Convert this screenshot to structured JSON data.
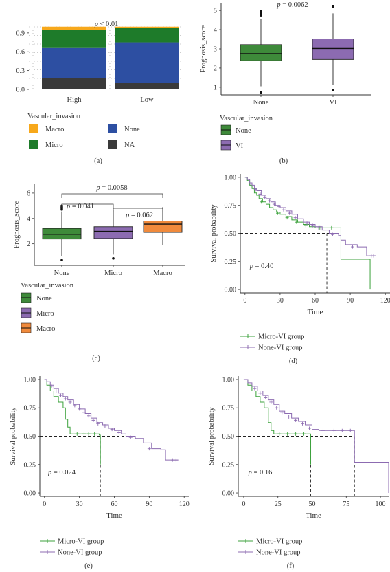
{
  "chart_data": [
    {
      "id": "a",
      "type": "bar",
      "stacked": true,
      "panel_label": "(a)",
      "p_label": "p < 0.01",
      "ylabel": "",
      "xlabel": "",
      "categories": [
        "High",
        "Low"
      ],
      "yticks": [
        "0.0",
        "0.3",
        "0.6",
        "0.9"
      ],
      "ylim": [
        0,
        1.03
      ],
      "grid": "dotted",
      "series": [
        {
          "name": "NA",
          "color": "#3a3a3a",
          "values": [
            0.18,
            0.1
          ]
        },
        {
          "name": "None",
          "color": "#2d4fa2",
          "values": [
            0.48,
            0.65
          ]
        },
        {
          "name": "Micro",
          "color": "#1e7b2a",
          "values": [
            0.29,
            0.23
          ]
        },
        {
          "name": "Macro",
          "color": "#f7a81b",
          "values": [
            0.05,
            0.02
          ]
        }
      ],
      "legend": {
        "title": "Vascular_invasion",
        "items": [
          {
            "name": "Macro",
            "color": "#f7a81b"
          },
          {
            "name": "None",
            "color": "#2d4fa2"
          },
          {
            "name": "Micro",
            "color": "#1e7b2a"
          },
          {
            "name": "NA",
            "color": "#3a3a3a"
          }
        ]
      }
    },
    {
      "id": "b",
      "type": "box",
      "panel_label": "(b)",
      "p_label": "p = 0.0062",
      "ylabel": "Prognosis_score",
      "categories": [
        "None",
        "VI"
      ],
      "yticks": [
        1,
        2,
        3,
        4,
        5
      ],
      "ylim": [
        0.6,
        5.4
      ],
      "boxes": [
        {
          "name": "None",
          "color": "#3e8a3a",
          "q1": 2.38,
          "median": 2.75,
          "q3": 3.22,
          "whisker_low": 1.05,
          "whisker_high": 4.55,
          "outliers": [
            0.72,
            4.75,
            4.8,
            4.85,
            4.9,
            4.95
          ]
        },
        {
          "name": "VI",
          "color": "#8c6bb1",
          "q1": 2.45,
          "median": 3.02,
          "q3": 3.52,
          "whisker_low": 1.1,
          "whisker_high": 4.85,
          "outliers": [
            0.85,
            5.2
          ]
        }
      ],
      "legend": {
        "title": "Vascular_invasion",
        "items": [
          {
            "name": "None",
            "color": "#3e8a3a"
          },
          {
            "name": "VI",
            "color": "#8c6bb1"
          }
        ]
      }
    },
    {
      "id": "c",
      "type": "box",
      "panel_label": "(c)",
      "ylabel": "Prognosis_score",
      "categories": [
        "None",
        "Micro",
        "Macro"
      ],
      "yticks": [
        2,
        4,
        6
      ],
      "ylim": [
        0.3,
        6.7
      ],
      "boxes": [
        {
          "name": "None",
          "color": "#3e8a3a",
          "q1": 2.38,
          "median": 2.75,
          "q3": 3.22,
          "whisker_low": 1.05,
          "whisker_high": 4.55,
          "outliers": [
            0.72,
            4.7,
            4.8,
            4.9,
            5.0
          ]
        },
        {
          "name": "Micro",
          "color": "#8c6bb1",
          "q1": 2.42,
          "median": 2.98,
          "q3": 3.35,
          "whisker_low": 1.15,
          "whisker_high": 4.65,
          "outliers": [
            0.85
          ]
        },
        {
          "name": "Macro",
          "color": "#f08a3c",
          "q1": 2.9,
          "median": 3.55,
          "q3": 3.8,
          "whisker_low": 1.9,
          "whisker_high": 4.9,
          "outliers": []
        }
      ],
      "comparisons": [
        {
          "from": 0,
          "to": 1,
          "label": "p = 0.041"
        },
        {
          "from": 1,
          "to": 2,
          "label": "p = 0.062"
        },
        {
          "from": 0,
          "to": 2,
          "label": "p = 0.0058"
        }
      ],
      "legend": {
        "title": "Vascular_invasion",
        "items": [
          {
            "name": "None",
            "color": "#3e8a3a"
          },
          {
            "name": "Micro",
            "color": "#8c6bb1"
          },
          {
            "name": "Macro",
            "color": "#f08a3c"
          }
        ]
      }
    },
    {
      "id": "d",
      "type": "line",
      "panel_label": "(d)",
      "p_label": "p = 0.40",
      "xlabel": "Time",
      "ylabel": "Survival probability",
      "xlim": [
        -4,
        124
      ],
      "xticks": [
        0,
        30,
        60,
        90,
        120
      ],
      "ylim": [
        -0.03,
        1.03
      ],
      "yticks": [
        "0.00",
        "0.25",
        "0.50",
        "0.75",
        "1.00"
      ],
      "median_lines": [
        70,
        82
      ],
      "series": [
        {
          "name": "Micro-VI group",
          "color": "#3ca23c",
          "points": [
            [
              0,
              1.0
            ],
            [
              2,
              0.97
            ],
            [
              4,
              0.93
            ],
            [
              6,
              0.9
            ],
            [
              8,
              0.86
            ],
            [
              10,
              0.84
            ],
            [
              12,
              0.81
            ],
            [
              15,
              0.78
            ],
            [
              18,
              0.76
            ],
            [
              21,
              0.73
            ],
            [
              24,
              0.71
            ],
            [
              27,
              0.69
            ],
            [
              30,
              0.67
            ],
            [
              35,
              0.65
            ],
            [
              40,
              0.62
            ],
            [
              45,
              0.6
            ],
            [
              50,
              0.58
            ],
            [
              55,
              0.56
            ],
            [
              60,
              0.55
            ],
            [
              70,
              0.55
            ],
            [
              76,
              0.55
            ],
            [
              82,
              0.55
            ],
            [
              82,
              0.27
            ],
            [
              107,
              0.27
            ],
            [
              107,
              0.0
            ]
          ],
          "censors": [
            [
              14,
              0.78
            ],
            [
              28,
              0.68
            ],
            [
              36,
              0.64
            ],
            [
              44,
              0.6
            ],
            [
              52,
              0.57
            ],
            [
              64,
              0.55
            ],
            [
              74,
              0.55
            ]
          ]
        },
        {
          "name": "None-VI group",
          "color": "#8c6bb1",
          "points": [
            [
              0,
              1.0
            ],
            [
              2,
              0.98
            ],
            [
              4,
              0.95
            ],
            [
              6,
              0.93
            ],
            [
              8,
              0.9
            ],
            [
              10,
              0.88
            ],
            [
              14,
              0.84
            ],
            [
              18,
              0.81
            ],
            [
              22,
              0.78
            ],
            [
              26,
              0.75
            ],
            [
              30,
              0.73
            ],
            [
              35,
              0.7
            ],
            [
              40,
              0.67
            ],
            [
              45,
              0.63
            ],
            [
              50,
              0.6
            ],
            [
              55,
              0.58
            ],
            [
              60,
              0.56
            ],
            [
              66,
              0.53
            ],
            [
              72,
              0.5
            ],
            [
              80,
              0.48
            ],
            [
              82,
              0.44
            ],
            [
              86,
              0.4
            ],
            [
              96,
              0.38
            ],
            [
              104,
              0.3
            ],
            [
              112,
              0.3
            ]
          ],
          "censors": [
            [
              5,
              0.94
            ],
            [
              9,
              0.89
            ],
            [
              13,
              0.85
            ],
            [
              17,
              0.82
            ],
            [
              21,
              0.79
            ],
            [
              25,
              0.76
            ],
            [
              29,
              0.74
            ],
            [
              33,
              0.71
            ],
            [
              38,
              0.68
            ],
            [
              43,
              0.64
            ],
            [
              48,
              0.61
            ],
            [
              53,
              0.59
            ],
            [
              58,
              0.57
            ],
            [
              63,
              0.55
            ],
            [
              75,
              0.49
            ],
            [
              92,
              0.38
            ],
            [
              108,
              0.3
            ],
            [
              110,
              0.3
            ]
          ]
        }
      ],
      "legend": [
        {
          "name": "Micro-VI group",
          "color": "#3ca23c"
        },
        {
          "name": "None-VI group",
          "color": "#8c6bb1"
        }
      ]
    },
    {
      "id": "e",
      "type": "line",
      "panel_label": "(e)",
      "p_label": "p = 0.024",
      "xlabel": "Time",
      "ylabel": "Survival probability",
      "xlim": [
        -4,
        124
      ],
      "xticks": [
        0,
        30,
        60,
        90,
        120
      ],
      "ylim": [
        -0.03,
        1.03
      ],
      "yticks": [
        "0.00",
        "0.25",
        "0.50",
        "0.75",
        "1.00"
      ],
      "median_lines": [
        48,
        70
      ],
      "series": [
        {
          "name": "Micro-VI group",
          "color": "#3ca23c",
          "points": [
            [
              0,
              1.0
            ],
            [
              2,
              0.95
            ],
            [
              5,
              0.9
            ],
            [
              8,
              0.85
            ],
            [
              12,
              0.8
            ],
            [
              16,
              0.75
            ],
            [
              18,
              0.65
            ],
            [
              20,
              0.58
            ],
            [
              22,
              0.52
            ],
            [
              30,
              0.52
            ],
            [
              40,
              0.52
            ],
            [
              47,
              0.51
            ],
            [
              48,
              0.5
            ],
            [
              48,
              0.25
            ]
          ],
          "censors": [
            [
              28,
              0.52
            ],
            [
              34,
              0.52
            ],
            [
              38,
              0.52
            ],
            [
              43,
              0.52
            ]
          ]
        },
        {
          "name": "None-VI group",
          "color": "#8c6bb1",
          "points": [
            [
              0,
              1.0
            ],
            [
              2,
              0.98
            ],
            [
              5,
              0.95
            ],
            [
              8,
              0.92
            ],
            [
              12,
              0.88
            ],
            [
              16,
              0.85
            ],
            [
              20,
              0.82
            ],
            [
              25,
              0.78
            ],
            [
              30,
              0.74
            ],
            [
              35,
              0.7
            ],
            [
              40,
              0.66
            ],
            [
              45,
              0.62
            ],
            [
              50,
              0.6
            ],
            [
              55,
              0.57
            ],
            [
              60,
              0.55
            ],
            [
              66,
              0.52
            ],
            [
              70,
              0.5
            ],
            [
              78,
              0.48
            ],
            [
              85,
              0.44
            ],
            [
              92,
              0.39
            ],
            [
              100,
              0.38
            ],
            [
              104,
              0.29
            ],
            [
              115,
              0.29
            ]
          ],
          "censors": [
            [
              6,
              0.94
            ],
            [
              10,
              0.9
            ],
            [
              14,
              0.86
            ],
            [
              18,
              0.83
            ],
            [
              22,
              0.8
            ],
            [
              26,
              0.77
            ],
            [
              30,
              0.74
            ],
            [
              34,
              0.71
            ],
            [
              38,
              0.68
            ],
            [
              42,
              0.64
            ],
            [
              46,
              0.61
            ],
            [
              52,
              0.59
            ],
            [
              58,
              0.56
            ],
            [
              64,
              0.53
            ],
            [
              74,
              0.49
            ],
            [
              90,
              0.39
            ],
            [
              110,
              0.29
            ],
            [
              113,
              0.29
            ]
          ]
        }
      ],
      "legend": [
        {
          "name": "Micro-VI group",
          "color": "#3ca23c"
        },
        {
          "name": "None-VI group",
          "color": "#8c6bb1"
        }
      ]
    },
    {
      "id": "f",
      "type": "line",
      "panel_label": "(f)",
      "p_label": "p = 0.16",
      "xlabel": "Time",
      "ylabel": "Survival probability",
      "xlim": [
        -4,
        106
      ],
      "xticks": [
        0,
        25,
        50,
        75,
        100
      ],
      "ylim": [
        -0.03,
        1.03
      ],
      "yticks": [
        "0.00",
        "0.25",
        "0.50",
        "0.75",
        "1.00"
      ],
      "median_lines": [
        49,
        81
      ],
      "series": [
        {
          "name": "Micro-VI group",
          "color": "#3ca23c",
          "points": [
            [
              0,
              1.0
            ],
            [
              3,
              0.95
            ],
            [
              6,
              0.9
            ],
            [
              9,
              0.85
            ],
            [
              12,
              0.8
            ],
            [
              15,
              0.75
            ],
            [
              18,
              0.62
            ],
            [
              20,
              0.55
            ],
            [
              22,
              0.52
            ],
            [
              30,
              0.52
            ],
            [
              40,
              0.52
            ],
            [
              49,
              0.51
            ],
            [
              49,
              0.25
            ]
          ],
          "censors": [
            [
              26,
              0.52
            ],
            [
              32,
              0.52
            ],
            [
              38,
              0.52
            ],
            [
              44,
              0.52
            ]
          ]
        },
        {
          "name": "None-VI group",
          "color": "#8c6bb1",
          "points": [
            [
              0,
              1.0
            ],
            [
              3,
              0.97
            ],
            [
              6,
              0.94
            ],
            [
              10,
              0.9
            ],
            [
              14,
              0.86
            ],
            [
              18,
              0.82
            ],
            [
              22,
              0.78
            ],
            [
              26,
              0.72
            ],
            [
              30,
              0.7
            ],
            [
              35,
              0.66
            ],
            [
              40,
              0.63
            ],
            [
              45,
              0.6
            ],
            [
              50,
              0.56
            ],
            [
              55,
              0.55
            ],
            [
              65,
              0.55
            ],
            [
              75,
              0.55
            ],
            [
              81,
              0.55
            ],
            [
              81,
              0.27
            ],
            [
              106,
              0.27
            ],
            [
              106,
              0.0
            ]
          ],
          "censors": [
            [
              8,
              0.92
            ],
            [
              12,
              0.88
            ],
            [
              16,
              0.84
            ],
            [
              20,
              0.8
            ],
            [
              24,
              0.75
            ],
            [
              28,
              0.71
            ],
            [
              33,
              0.67
            ],
            [
              38,
              0.64
            ],
            [
              43,
              0.61
            ],
            [
              48,
              0.57
            ],
            [
              58,
              0.55
            ],
            [
              66,
              0.55
            ],
            [
              72,
              0.55
            ],
            [
              78,
              0.55
            ]
          ]
        }
      ],
      "legend": [
        {
          "name": "Micro-VI group",
          "color": "#3ca23c"
        },
        {
          "name": "None-VI group",
          "color": "#8c6bb1"
        }
      ]
    }
  ]
}
